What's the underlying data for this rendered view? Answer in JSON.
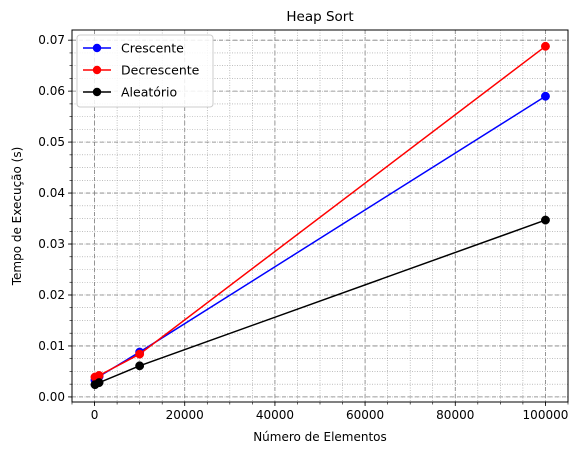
{
  "chart_data": {
    "type": "line",
    "title": "Heap Sort",
    "xlabel": "Número de Elementos",
    "ylabel": "Tempo de Execução (s)",
    "xlim": [
      -5000,
      105000
    ],
    "ylim": [
      -0.001,
      0.072
    ],
    "xticks": [
      0,
      20000,
      40000,
      60000,
      80000,
      100000
    ],
    "xtick_labels": [
      "0",
      "20000",
      "40000",
      "60000",
      "80000",
      "100000"
    ],
    "yticks": [
      0.0,
      0.01,
      0.02,
      0.03,
      0.04,
      0.05,
      0.06,
      0.07
    ],
    "ytick_labels": [
      "0.00",
      "0.01",
      "0.02",
      "0.03",
      "0.04",
      "0.05",
      "0.06",
      "0.07"
    ],
    "grid": true,
    "legend_position": "top-left",
    "x": [
      100,
      1000,
      10000,
      100000
    ],
    "series": [
      {
        "name": "Crescente",
        "color": "#0000ff",
        "values": [
          0.0033,
          0.004,
          0.0088,
          0.059
        ]
      },
      {
        "name": "Decrescente",
        "color": "#ff0000",
        "values": [
          0.0039,
          0.0042,
          0.0084,
          0.0688
        ]
      },
      {
        "name": "Aleatório",
        "color": "#000000",
        "values": [
          0.0024,
          0.0028,
          0.0061,
          0.0347
        ]
      }
    ]
  }
}
